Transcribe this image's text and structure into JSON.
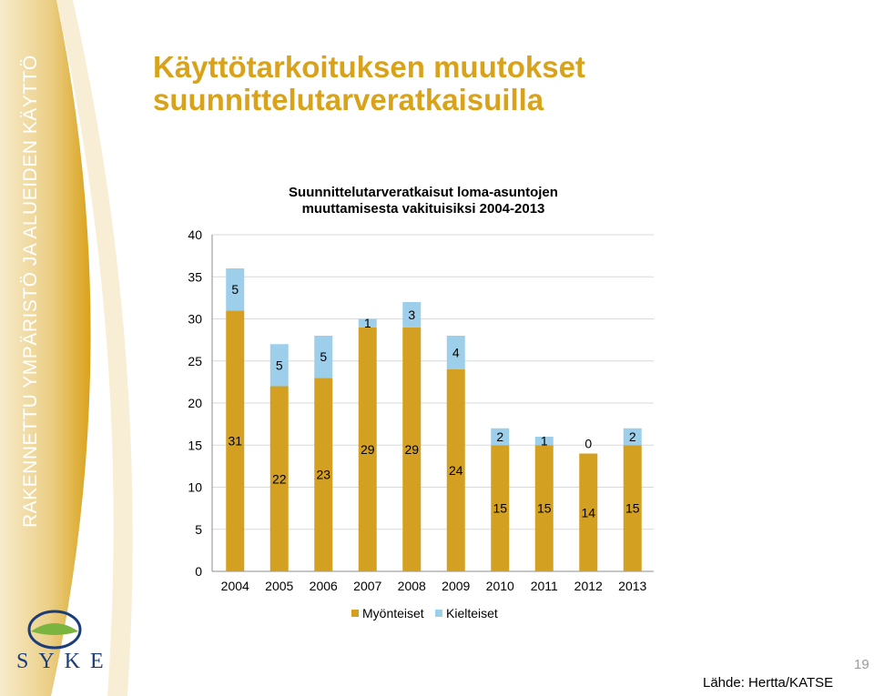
{
  "slide": {
    "title": "Käyttötarkoituksen muutokset suunnittelutarveratkaisuilla",
    "vertical_text": "RAKENNETTU YMPÄRISTÖ JA ALUEIDEN KÄYTTÖ",
    "logo_text": "SYKE",
    "page_number": "19",
    "source": "Lähde: Hertta/KATSE"
  },
  "colors": {
    "sidebar_light": "#F7EBCB",
    "sidebar_mid": "#EBCF86",
    "sidebar_dark": "#D9A21B",
    "title": "#D9A21B",
    "approved": "#D4A022",
    "rejected": "#9DCFEA",
    "logo_blue": "#1B3E7A",
    "logo_green": "#7BB43F"
  },
  "chart_data": {
    "type": "bar",
    "stacked": true,
    "title_lines": [
      "Suunnittelutarveratkaisut loma-asuntojen",
      "muuttamisesta vakituisiksi 2004-2013"
    ],
    "categories": [
      "2004",
      "2005",
      "2006",
      "2007",
      "2008",
      "2009",
      "2010",
      "2011",
      "2012",
      "2013"
    ],
    "series": [
      {
        "name": "Myönteiset",
        "values": [
          31,
          22,
          23,
          29,
          29,
          24,
          15,
          15,
          14,
          15
        ]
      },
      {
        "name": "Kielteiset",
        "values": [
          5,
          5,
          5,
          1,
          3,
          4,
          2,
          1,
          0,
          2
        ]
      }
    ],
    "ylim": [
      0,
      40
    ],
    "yticks": [
      0,
      5,
      10,
      15,
      20,
      25,
      30,
      35,
      40
    ],
    "grid": true,
    "legend": "bottom"
  }
}
